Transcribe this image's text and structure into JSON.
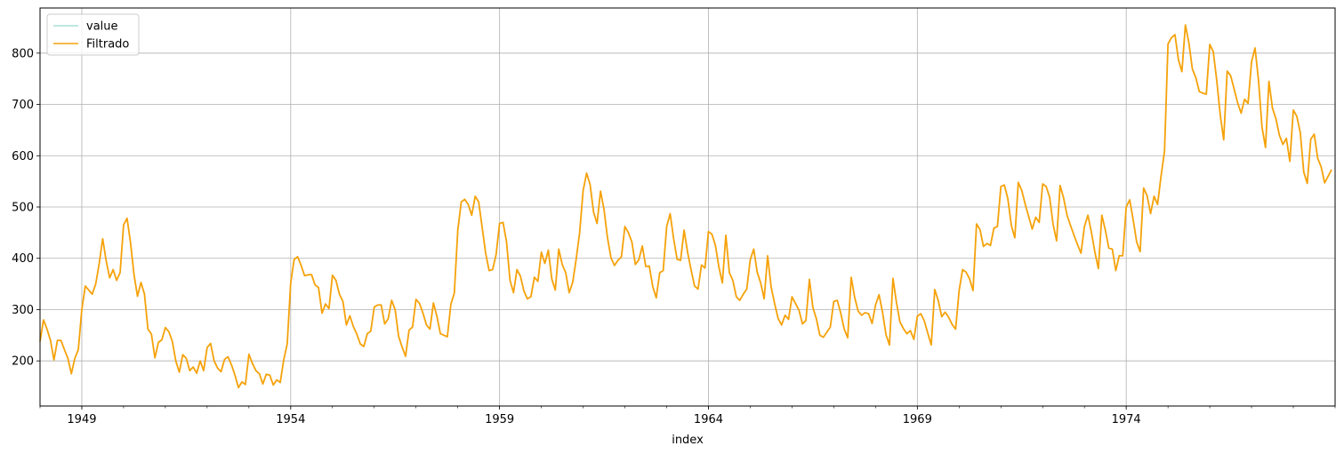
{
  "chart_data": {
    "type": "line",
    "title": "",
    "xlabel": "index",
    "ylabel": "",
    "grid": true,
    "legend_position": "top-left",
    "x_ticks": [
      "1949",
      "1954",
      "1959",
      "1964",
      "1969",
      "1974"
    ],
    "y_ticks": [
      200,
      300,
      400,
      500,
      600,
      700,
      800
    ],
    "xlim": [
      "1948-01",
      "1979-01"
    ],
    "ylim": [
      112,
      888
    ],
    "x_start": "1948-01",
    "x_step": "1 month",
    "series": [
      {
        "name": "value",
        "color": "#a8e0d8",
        "values": []
      },
      {
        "name": "Filtrado",
        "color": "#f5a20a",
        "values": [
          238,
          280,
          262,
          240,
          202,
          240,
          240,
          222,
          205,
          175,
          205,
          222,
          300,
          346,
          338,
          330,
          350,
          390,
          438,
          395,
          362,
          378,
          357,
          372,
          465,
          478,
          430,
          368,
          326,
          353,
          330,
          262,
          252,
          206,
          236,
          241,
          265,
          257,
          238,
          200,
          178,
          212,
          205,
          181,
          188,
          176,
          200,
          181,
          226,
          234,
          200,
          186,
          179,
          203,
          208,
          192,
          172,
          148,
          159,
          154,
          213,
          195,
          181,
          175,
          155,
          174,
          172,
          153,
          163,
          158,
          202,
          233,
          352,
          398,
          403,
          386,
          366,
          368,
          368,
          348,
          343,
          293,
          311,
          302,
          367,
          357,
          330,
          316,
          270,
          288,
          267,
          252,
          233,
          228,
          253,
          258,
          305,
          309,
          309,
          272,
          282,
          318,
          300,
          248,
          227,
          209,
          260,
          266,
          320,
          312,
          293,
          270,
          262,
          313,
          287,
          253,
          250,
          247,
          310,
          332,
          455,
          510,
          515,
          505,
          484,
          521,
          510,
          460,
          410,
          376,
          378,
          407,
          468,
          470,
          432,
          357,
          333,
          378,
          365,
          336,
          321,
          325,
          363,
          355,
          412,
          390,
          416,
          360,
          338,
          418,
          388,
          372,
          333,
          353,
          398,
          450,
          532,
          566,
          544,
          490,
          468,
          531,
          495,
          440,
          401,
          386,
          396,
          403,
          462,
          450,
          432,
          388,
          397,
          424,
          384,
          385,
          345,
          323,
          372,
          376,
          462,
          487,
          438,
          398,
          396,
          455,
          412,
          378,
          346,
          340,
          387,
          381,
          452,
          447,
          425,
          383,
          352,
          445,
          372,
          357,
          325,
          318,
          330,
          340,
          397,
          418,
          373,
          352,
          321,
          405,
          344,
          312,
          283,
          270,
          289,
          281,
          325,
          312,
          299,
          272,
          279,
          359,
          304,
          282,
          250,
          246,
          256,
          266,
          316,
          318,
          293,
          262,
          245,
          363,
          324,
          297,
          289,
          294,
          292,
          273,
          309,
          329,
          295,
          251,
          231,
          361,
          314,
          276,
          263,
          253,
          259,
          242,
          287,
          292,
          278,
          254,
          231,
          339,
          318,
          286,
          295,
          285,
          271,
          262,
          337,
          378,
          373,
          360,
          337,
          467,
          456,
          423,
          429,
          425,
          459,
          462,
          540,
          543,
          516,
          464,
          440,
          548,
          532,
          505,
          481,
          457,
          480,
          470,
          545,
          540,
          519,
          466,
          434,
          542,
          518,
          484,
          464,
          445,
          427,
          410,
          462,
          484,
          451,
          412,
          380,
          484,
          455,
          420,
          418,
          376,
          405,
          405,
          500,
          514,
          475,
          432,
          413,
          537,
          522,
          487,
          521,
          505,
          560,
          609,
          818,
          830,
          836,
          787,
          764,
          855,
          820,
          769,
          752,
          725,
          722,
          720,
          817,
          803,
          747,
          680,
          631,
          765,
          756,
          730,
          703,
          683,
          710,
          702,
          783,
          810,
          747,
          656,
          616,
          745,
          693,
          672,
          640,
          622,
          634,
          589,
          689,
          677,
          645,
          568,
          546,
          632,
          642,
          595,
          578,
          547,
          560,
          573
        ]
      }
    ]
  }
}
